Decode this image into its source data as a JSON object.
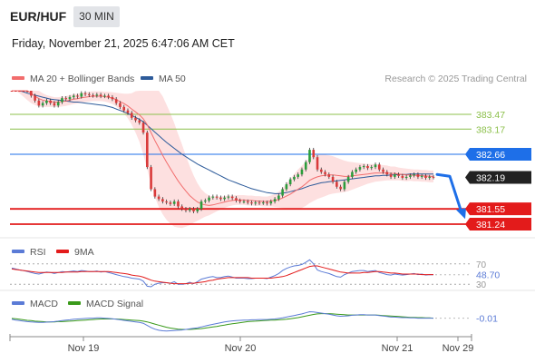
{
  "header": {
    "pair": "EUR/HUF",
    "timeframe": "30 MIN",
    "datetime": "Friday, November 21, 2025 6:47:06 AM CET"
  },
  "colors": {
    "ma20": "#f26d6d",
    "ma50": "#2d5b9a",
    "band_fill": "#fde0e0",
    "resistance": "#8cc04b",
    "pivot": "#1e6fe8",
    "support": "#e31b1b",
    "current": "#222222",
    "candle_up": "#2a9d3c",
    "candle_down": "#d93a3a",
    "rsi": "#5b7bd6",
    "rsi_ma": "#e31b1b",
    "macd": "#5b7bd6",
    "macd_signal": "#3a9a1a"
  },
  "chart_data": {
    "type": "candlestick",
    "legend": {
      "ma20": "MA 20 + Bollinger Bands",
      "ma50": "MA 50",
      "credit": "Research © 2025 Trading Central"
    },
    "x_ticks": [
      "Nov 19",
      "Nov 20",
      "Nov 21",
      "Nov 29"
    ],
    "ylim": [
      381.0,
      383.95
    ],
    "levels": [
      {
        "label": "383.47",
        "value": 383.47,
        "kind": "resistance"
      },
      {
        "label": "383.17",
        "value": 383.17,
        "kind": "resistance"
      },
      {
        "label": "382.66",
        "value": 382.66,
        "kind": "pivot"
      },
      {
        "label": "382.19",
        "value": 382.19,
        "kind": "current"
      },
      {
        "label": "381.55",
        "value": 381.55,
        "kind": "support"
      },
      {
        "label": "381.24",
        "value": 381.24,
        "kind": "support"
      }
    ],
    "close": [
      384.45,
      384.3,
      384.15,
      384.05,
      383.95,
      383.85,
      383.75,
      383.65,
      383.7,
      383.75,
      383.7,
      383.65,
      383.72,
      383.8,
      383.78,
      383.82,
      383.85,
      383.83,
      383.9,
      383.88,
      383.86,
      383.85,
      383.87,
      383.84,
      383.85,
      383.82,
      383.78,
      383.7,
      383.62,
      383.55,
      383.5,
      383.4,
      383.35,
      383.3,
      383.1,
      382.4,
      381.95,
      381.8,
      381.75,
      381.7,
      381.68,
      381.65,
      381.7,
      381.6,
      381.55,
      381.52,
      381.55,
      381.5,
      381.55,
      381.7,
      381.72,
      381.78,
      381.8,
      381.78,
      381.75,
      381.78,
      381.8,
      381.77,
      381.72,
      381.7,
      381.7,
      381.68,
      381.66,
      381.68,
      381.67,
      381.68,
      381.66,
      381.7,
      381.75,
      381.82,
      381.95,
      382.05,
      382.15,
      382.2,
      382.25,
      382.35,
      382.5,
      382.75,
      382.6,
      382.35,
      382.3,
      382.25,
      382.2,
      382.1,
      382.0,
      381.95,
      382.1,
      382.2,
      382.3,
      382.35,
      382.4,
      382.42,
      382.38,
      382.4,
      382.45,
      382.35,
      382.3,
      382.25,
      382.2,
      382.25,
      382.22,
      382.18,
      382.2,
      382.23,
      382.25,
      382.2,
      382.22,
      382.18,
      382.2,
      382.19
    ],
    "ma50": [
      383.98,
      383.97,
      383.95,
      383.93,
      383.9,
      383.88,
      383.86,
      383.84,
      383.82,
      383.8,
      383.78,
      383.77,
      383.76,
      383.75,
      383.74,
      383.73,
      383.72,
      383.72,
      383.71,
      383.7,
      383.69,
      383.68,
      383.67,
      383.66,
      383.65,
      383.63,
      383.61,
      383.58,
      383.55,
      383.52,
      383.49,
      383.45,
      383.41,
      383.37,
      383.32,
      383.25,
      383.18,
      383.11,
      383.04,
      382.97,
      382.9,
      382.84,
      382.78,
      382.72,
      382.66,
      382.61,
      382.56,
      382.51,
      382.46,
      382.42,
      382.38,
      382.34,
      382.3,
      382.26,
      382.22,
      382.18,
      382.14,
      382.11,
      382.08,
      382.05,
      382.02,
      381.99,
      381.96,
      381.94,
      381.92,
      381.9,
      381.88,
      381.87,
      381.86,
      381.86,
      381.87,
      381.88,
      381.9,
      381.92,
      381.94,
      381.96,
      381.99,
      382.02,
      382.04,
      382.06,
      382.08,
      382.09,
      382.1,
      382.11,
      382.12,
      382.13,
      382.14,
      382.15,
      382.16,
      382.17,
      382.18,
      382.19,
      382.2,
      382.21,
      382.22,
      382.22,
      382.23,
      382.23,
      382.24,
      382.24,
      382.25,
      382.25,
      382.25,
      382.26,
      382.26,
      382.26,
      382.26,
      382.26,
      382.26,
      382.26
    ],
    "ma20": [
      384.3,
      384.22,
      384.14,
      384.06,
      383.98,
      383.9,
      383.84,
      383.79,
      383.76,
      383.74,
      383.73,
      383.72,
      383.72,
      383.73,
      383.74,
      383.76,
      383.78,
      383.79,
      383.81,
      383.82,
      383.83,
      383.84,
      383.84,
      383.84,
      383.83,
      383.82,
      383.8,
      383.77,
      383.73,
      383.69,
      383.64,
      383.58,
      383.52,
      383.46,
      383.38,
      383.26,
      383.1,
      382.94,
      382.79,
      382.64,
      382.5,
      382.37,
      382.24,
      382.12,
      382.01,
      381.91,
      381.82,
      381.75,
      381.69,
      381.65,
      381.63,
      381.62,
      381.63,
      381.65,
      381.67,
      381.69,
      381.71,
      381.72,
      381.73,
      381.73,
      381.73,
      381.72,
      381.72,
      381.71,
      381.71,
      381.7,
      381.7,
      381.71,
      381.72,
      381.74,
      381.77,
      381.81,
      381.85,
      381.9,
      381.95,
      382.0,
      382.06,
      382.13,
      382.17,
      382.2,
      382.22,
      382.23,
      382.24,
      382.24,
      382.23,
      382.22,
      382.21,
      382.21,
      382.22,
      382.23,
      382.24,
      382.25,
      382.26,
      382.27,
      382.28,
      382.28,
      382.28,
      382.28,
      382.27,
      382.27,
      382.26,
      382.25,
      382.24,
      382.24,
      382.23,
      382.23,
      382.22,
      382.22,
      382.21,
      382.21
    ],
    "band_width": [
      0.25,
      0.25,
      0.24,
      0.23,
      0.22,
      0.2,
      0.18,
      0.16,
      0.14,
      0.12,
      0.11,
      0.1,
      0.1,
      0.1,
      0.1,
      0.1,
      0.1,
      0.1,
      0.1,
      0.1,
      0.1,
      0.1,
      0.1,
      0.1,
      0.1,
      0.11,
      0.12,
      0.14,
      0.17,
      0.2,
      0.25,
      0.32,
      0.42,
      0.55,
      0.72,
      0.9,
      1.05,
      1.15,
      1.2,
      1.2,
      1.17,
      1.12,
      1.05,
      0.95,
      0.85,
      0.72,
      0.6,
      0.48,
      0.38,
      0.3,
      0.24,
      0.2,
      0.17,
      0.15,
      0.13,
      0.12,
      0.11,
      0.1,
      0.1,
      0.1,
      0.1,
      0.1,
      0.1,
      0.1,
      0.1,
      0.1,
      0.1,
      0.11,
      0.13,
      0.16,
      0.2,
      0.25,
      0.3,
      0.36,
      0.4,
      0.43,
      0.45,
      0.46,
      0.46,
      0.45,
      0.44,
      0.42,
      0.4,
      0.38,
      0.36,
      0.34,
      0.32,
      0.3,
      0.28,
      0.26,
      0.24,
      0.22,
      0.2,
      0.19,
      0.18,
      0.17,
      0.16,
      0.15,
      0.14,
      0.14,
      0.13,
      0.13,
      0.13,
      0.12,
      0.12,
      0.12,
      0.12,
      0.12,
      0.12,
      0.12
    ],
    "forecast": {
      "from": 382.25,
      "to": 381.42
    },
    "rsi": {
      "labels": {
        "rsi": "RSI",
        "ma": "9MA"
      },
      "levels": [
        "70",
        "30"
      ],
      "value": "48.70",
      "ylim": [
        25,
        75
      ],
      "rsi_values": [
        62,
        60,
        58,
        57,
        55,
        53,
        51,
        50,
        52,
        54,
        53,
        51,
        53,
        55,
        54,
        55,
        56,
        55,
        57,
        56,
        55,
        55,
        56,
        54,
        55,
        53,
        51,
        49,
        47,
        45,
        44,
        42,
        41,
        40,
        36,
        26,
        25,
        30,
        32,
        33,
        33,
        32,
        35,
        30,
        30,
        31,
        34,
        31,
        35,
        40,
        42,
        44,
        45,
        43,
        43,
        45,
        46,
        44,
        42,
        42,
        42,
        41,
        41,
        42,
        42,
        42,
        41,
        44,
        47,
        51,
        57,
        61,
        64,
        66,
        67,
        69,
        73,
        78,
        70,
        58,
        55,
        53,
        51,
        48,
        45,
        44,
        49,
        52,
        55,
        56,
        57,
        57,
        55,
        56,
        57,
        53,
        51,
        49,
        48,
        50,
        49,
        48,
        49,
        50,
        51,
        49,
        50,
        48,
        49,
        48.7
      ],
      "ma_values": [
        60,
        59,
        58,
        57,
        56,
        55,
        54,
        53,
        53,
        53,
        53,
        53,
        53,
        53,
        54,
        54,
        54,
        54,
        55,
        55,
        55,
        55,
        55,
        55,
        55,
        55,
        54,
        53,
        52,
        51,
        50,
        48,
        47,
        46,
        44,
        41,
        38,
        36,
        35,
        34,
        33,
        32,
        31,
        31,
        31,
        31,
        32,
        32,
        33,
        34,
        35,
        37,
        38,
        40,
        41,
        42,
        43,
        43,
        43,
        43,
        43,
        43,
        42,
        42,
        42,
        42,
        42,
        42,
        43,
        44,
        45,
        47,
        50,
        53,
        56,
        59,
        62,
        65,
        66,
        66,
        64,
        62,
        60,
        58,
        56,
        54,
        53,
        52,
        52,
        52,
        52,
        53,
        53,
        54,
        55,
        55,
        54,
        53,
        52,
        52,
        51,
        50,
        50,
        50,
        50,
        50,
        49,
        49,
        49,
        49
      ]
    },
    "macd": {
      "labels": {
        "macd": "MACD",
        "signal": "MACD Signal"
      },
      "value": "-0.01",
      "ylim": [
        -0.6,
        0.35
      ],
      "macd_values": [
        -0.05,
        -0.08,
        -0.1,
        -0.12,
        -0.14,
        -0.15,
        -0.16,
        -0.17,
        -0.17,
        -0.16,
        -0.15,
        -0.14,
        -0.12,
        -0.1,
        -0.08,
        -0.07,
        -0.05,
        -0.04,
        -0.03,
        -0.02,
        -0.01,
        -0.01,
        0.0,
        0.0,
        -0.01,
        -0.02,
        -0.03,
        -0.05,
        -0.07,
        -0.09,
        -0.11,
        -0.13,
        -0.15,
        -0.17,
        -0.2,
        -0.28,
        -0.36,
        -0.42,
        -0.46,
        -0.48,
        -0.49,
        -0.48,
        -0.47,
        -0.46,
        -0.45,
        -0.43,
        -0.41,
        -0.39,
        -0.37,
        -0.34,
        -0.3,
        -0.27,
        -0.24,
        -0.21,
        -0.18,
        -0.15,
        -0.13,
        -0.11,
        -0.1,
        -0.09,
        -0.08,
        -0.08,
        -0.07,
        -0.07,
        -0.06,
        -0.06,
        -0.06,
        -0.05,
        -0.04,
        -0.02,
        0.0,
        0.03,
        0.06,
        0.09,
        0.12,
        0.15,
        0.19,
        0.23,
        0.22,
        0.2,
        0.18,
        0.16,
        0.14,
        0.11,
        0.08,
        0.06,
        0.07,
        0.08,
        0.1,
        0.11,
        0.12,
        0.12,
        0.11,
        0.11,
        0.11,
        0.09,
        0.07,
        0.05,
        0.03,
        0.03,
        0.02,
        0.01,
        0.01,
        0.0,
        0.0,
        -0.01,
        -0.01,
        -0.01,
        -0.01,
        -0.01
      ],
      "signal_values": [
        -0.02,
        -0.03,
        -0.05,
        -0.07,
        -0.09,
        -0.1,
        -0.12,
        -0.13,
        -0.14,
        -0.15,
        -0.15,
        -0.15,
        -0.14,
        -0.14,
        -0.13,
        -0.12,
        -0.11,
        -0.1,
        -0.09,
        -0.08,
        -0.07,
        -0.06,
        -0.05,
        -0.04,
        -0.04,
        -0.04,
        -0.04,
        -0.04,
        -0.05,
        -0.06,
        -0.07,
        -0.08,
        -0.09,
        -0.1,
        -0.12,
        -0.15,
        -0.19,
        -0.23,
        -0.27,
        -0.31,
        -0.35,
        -0.38,
        -0.4,
        -0.42,
        -0.43,
        -0.43,
        -0.43,
        -0.42,
        -0.41,
        -0.4,
        -0.38,
        -0.36,
        -0.34,
        -0.32,
        -0.29,
        -0.27,
        -0.24,
        -0.22,
        -0.2,
        -0.18,
        -0.16,
        -0.14,
        -0.13,
        -0.12,
        -0.11,
        -0.1,
        -0.09,
        -0.08,
        -0.08,
        -0.07,
        -0.06,
        -0.05,
        -0.03,
        -0.01,
        0.01,
        0.04,
        0.07,
        0.1,
        0.13,
        0.15,
        0.16,
        0.16,
        0.16,
        0.15,
        0.14,
        0.13,
        0.12,
        0.11,
        0.11,
        0.11,
        0.11,
        0.11,
        0.11,
        0.11,
        0.11,
        0.1,
        0.09,
        0.08,
        0.07,
        0.06,
        0.05,
        0.04,
        0.03,
        0.02,
        0.02,
        0.01,
        0.01,
        0.0,
        0.0,
        -0.01
      ]
    }
  }
}
